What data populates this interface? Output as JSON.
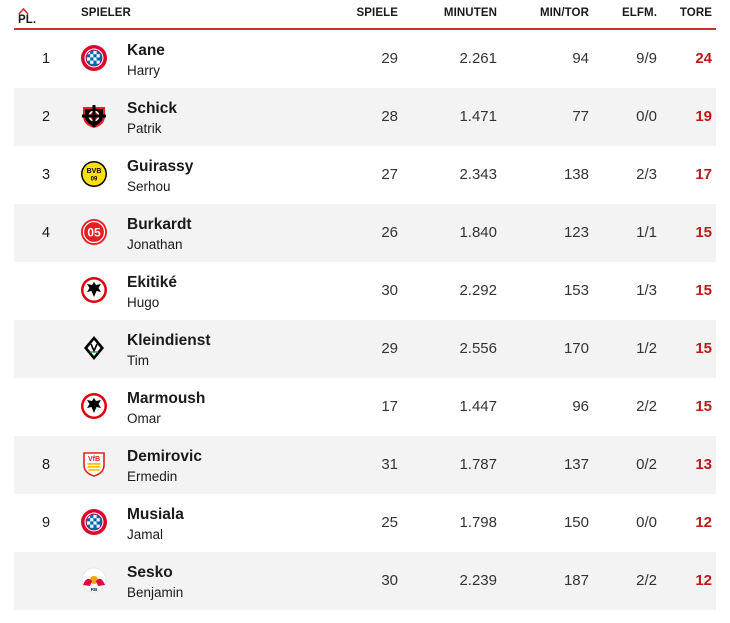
{
  "header": {
    "pl": "PL.",
    "spieler": "SPIELER",
    "spiele": "SPIELE",
    "minuten": "MINUTEN",
    "min_tor": "MIN/TOR",
    "elfm": "ELFM.",
    "tore": "TORE"
  },
  "colors": {
    "accent": "#d32f2f",
    "tore": "#b71c1c",
    "row_alt": "#f3f3f3"
  },
  "rows": [
    {
      "pl": "1",
      "club_icon": "fc-bayern-logo-icon",
      "lastname": "Kane",
      "firstname": "Harry",
      "spiele": "29",
      "minuten": "2.261",
      "min_tor": "94",
      "elfm": "9/9",
      "tore": "24"
    },
    {
      "pl": "2",
      "club_icon": "bayer-leverkusen-logo-icon",
      "lastname": "Schick",
      "firstname": "Patrik",
      "spiele": "28",
      "minuten": "1.471",
      "min_tor": "77",
      "elfm": "0/0",
      "tore": "19"
    },
    {
      "pl": "3",
      "club_icon": "bvb-logo-icon",
      "lastname": "Guirassy",
      "firstname": "Serhou",
      "spiele": "27",
      "minuten": "2.343",
      "min_tor": "138",
      "elfm": "2/3",
      "tore": "17"
    },
    {
      "pl": "4",
      "club_icon": "mainz-05-logo-icon",
      "lastname": "Burkardt",
      "firstname": "Jonathan",
      "spiele": "26",
      "minuten": "1.840",
      "min_tor": "123",
      "elfm": "1/1",
      "tore": "15"
    },
    {
      "pl": "",
      "club_icon": "eintracht-frankfurt-logo-icon",
      "lastname": "Ekitiké",
      "firstname": "Hugo",
      "spiele": "30",
      "minuten": "2.292",
      "min_tor": "153",
      "elfm": "1/3",
      "tore": "15"
    },
    {
      "pl": "",
      "club_icon": "gladbach-logo-icon",
      "lastname": "Kleindienst",
      "firstname": "Tim",
      "spiele": "29",
      "minuten": "2.556",
      "min_tor": "170",
      "elfm": "1/2",
      "tore": "15"
    },
    {
      "pl": "",
      "club_icon": "eintracht-frankfurt-logo-icon",
      "lastname": "Marmoush",
      "firstname": "Omar",
      "spiele": "17",
      "minuten": "1.447",
      "min_tor": "96",
      "elfm": "2/2",
      "tore": "15"
    },
    {
      "pl": "8",
      "club_icon": "vfb-stuttgart-logo-icon",
      "lastname": "Demirovic",
      "firstname": "Ermedin",
      "spiele": "31",
      "minuten": "1.787",
      "min_tor": "137",
      "elfm": "0/2",
      "tore": "13"
    },
    {
      "pl": "9",
      "club_icon": "fc-bayern-logo-icon",
      "lastname": "Musiala",
      "firstname": "Jamal",
      "spiele": "25",
      "minuten": "1.798",
      "min_tor": "150",
      "elfm": "0/0",
      "tore": "12"
    },
    {
      "pl": "",
      "club_icon": "rb-leipzig-logo-icon",
      "lastname": "Sesko",
      "firstname": "Benjamin",
      "spiele": "30",
      "minuten": "2.239",
      "min_tor": "187",
      "elfm": "2/2",
      "tore": "12"
    }
  ]
}
